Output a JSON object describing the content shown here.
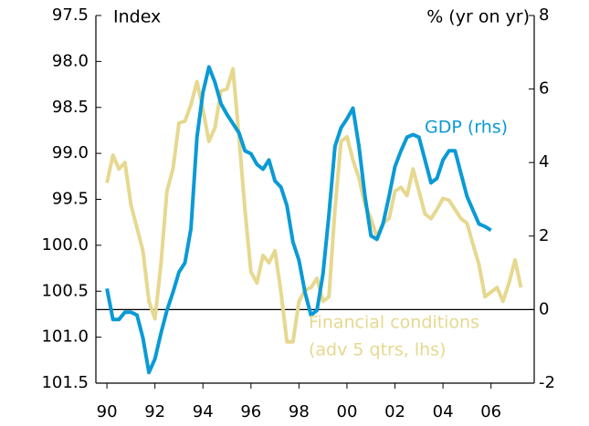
{
  "chart_data": {
    "type": "line",
    "y_label": "Index",
    "y2_label": "% (yr on yr)",
    "annotations": [
      {
        "text": "GDP (rhs)",
        "series": 0
      },
      {
        "text": [
          "Financial conditions",
          "(adv 5 qtrs, lhs)"
        ],
        "series": 1
      }
    ],
    "x": [
      1990,
      1990.25,
      1990.5,
      1990.75,
      1991,
      1991.25,
      1991.5,
      1991.75,
      1992,
      1992.25,
      1992.5,
      1992.75,
      1993,
      1993.25,
      1993.5,
      1993.75,
      1994,
      1994.25,
      1994.5,
      1994.75,
      1995,
      1995.25,
      1995.5,
      1995.75,
      1996,
      1996.25,
      1996.5,
      1996.75,
      1997,
      1997.25,
      1997.5,
      1997.75,
      1998,
      1998.25,
      1998.5,
      1998.75,
      1999,
      1999.25,
      1999.5,
      1999.75,
      2000,
      2000.25,
      2000.5,
      2000.75,
      2001,
      2001.25,
      2001.5,
      2001.75,
      2002,
      2002.25,
      2002.5,
      2002.75,
      2003,
      2003.25,
      2003.5,
      2003.75,
      2004,
      2004.25,
      2004.5,
      2004.75,
      2005,
      2005.25,
      2005.5,
      2005.75,
      2006,
      2006.25,
      2006.5,
      2006.75,
      2007,
      2007.25
    ],
    "series": [
      {
        "name": "GDP",
        "axis": "y2",
        "color": "#0a9ad6",
        "values": [
          0.57,
          -0.27,
          -0.27,
          -0.07,
          -0.07,
          -0.15,
          -0.77,
          -1.71,
          -1.34,
          -0.65,
          -0.02,
          0.47,
          1.02,
          1.27,
          2.2,
          4.69,
          5.9,
          6.6,
          6.18,
          5.6,
          5.31,
          5.06,
          4.81,
          4.32,
          4.24,
          3.95,
          3.82,
          4.07,
          3.5,
          3.33,
          2.83,
          1.84,
          1.34,
          0.47,
          -0.15,
          -0.02,
          0.97,
          2.58,
          4.44,
          4.94,
          5.19,
          5.48,
          4.44,
          3.08,
          2.01,
          1.91,
          2.33,
          3.08,
          3.89,
          4.32,
          4.69,
          4.76,
          4.69,
          4.07,
          3.45,
          3.57,
          4.07,
          4.32,
          4.32,
          3.7,
          3.08,
          2.7,
          2.33,
          2.26,
          2.16,
          null,
          null,
          null,
          null,
          null
        ]
      },
      {
        "name": "Financial conditions",
        "axis": "y",
        "color": "#e6d88f",
        "values": [
          99.32,
          99.02,
          99.17,
          99.1,
          99.56,
          99.81,
          100.06,
          100.61,
          100.8,
          100.21,
          99.41,
          99.17,
          98.67,
          98.65,
          98.47,
          98.22,
          98.52,
          98.87,
          98.72,
          98.32,
          98.3,
          98.08,
          98.82,
          99.61,
          100.29,
          100.41,
          100.11,
          100.19,
          100.06,
          100.51,
          101.05,
          101.05,
          100.61,
          100.49,
          100.46,
          100.36,
          100.61,
          100.56,
          99.61,
          98.87,
          98.82,
          99.07,
          99.27,
          99.56,
          99.71,
          99.91,
          99.76,
          99.71,
          99.41,
          99.37,
          99.46,
          99.17,
          99.41,
          99.66,
          99.71,
          99.61,
          99.49,
          99.51,
          99.61,
          99.71,
          99.76,
          99.99,
          100.21,
          100.56,
          100.51,
          100.46,
          100.61,
          100.41,
          100.16,
          100.46
        ]
      }
    ],
    "xlim": [
      1989.54,
      2007.8
    ],
    "xticks": [
      {
        "value": 1990,
        "label": "90"
      },
      {
        "value": 1992,
        "label": "92"
      },
      {
        "value": 1994,
        "label": "94"
      },
      {
        "value": 1996,
        "label": "96"
      },
      {
        "value": 1998,
        "label": "98"
      },
      {
        "value": 2000,
        "label": "00"
      },
      {
        "value": 2002,
        "label": "02"
      },
      {
        "value": 2004,
        "label": "04"
      },
      {
        "value": 2006,
        "label": "06"
      }
    ],
    "ylim": [
      101.5,
      97.5
    ],
    "yticks": [
      97.5,
      {
        "value": 98,
        "label": "98.0"
      },
      98.5,
      {
        "value": 99,
        "label": "99.0"
      },
      99.5,
      {
        "value": 100,
        "label": "100.0"
      },
      100.5,
      {
        "value": 101,
        "label": "101.0"
      },
      101.5
    ],
    "y2lim": [
      -2,
      8
    ],
    "y2ticks": [
      -2,
      0,
      2,
      4,
      6,
      8
    ],
    "zero_line": {
      "axis": "y2",
      "value": 0
    }
  }
}
